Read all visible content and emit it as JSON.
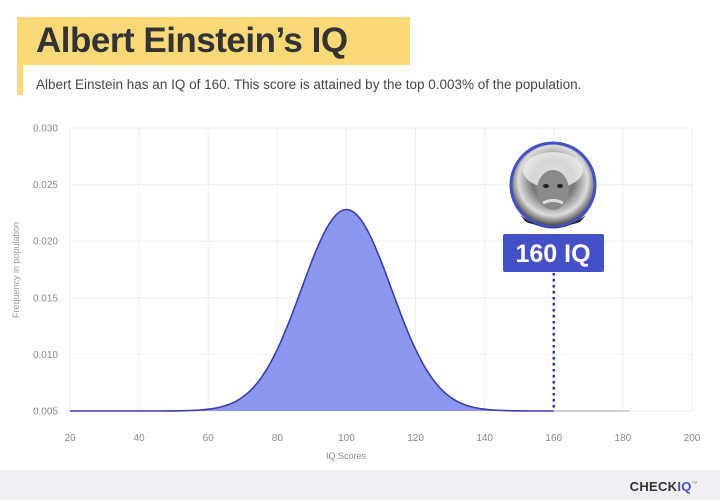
{
  "header": {
    "title": "Albert Einstein’s IQ",
    "subtitle": "Albert Einstein has an IQ of 160. This score is attained by the top 0.003% of the population."
  },
  "colors": {
    "accent": "#4450c8",
    "fill": "#8c97f0",
    "highlight": "#fcd977"
  },
  "chart_data": {
    "type": "area",
    "title": "",
    "xlabel": "IQ Scores",
    "ylabel": "Frequency in population",
    "xlim": [
      20,
      200
    ],
    "ylim": [
      0.005,
      0.03
    ],
    "xticks": [
      "20",
      "40",
      "60",
      "80",
      "100",
      "120",
      "140",
      "160",
      "180",
      "200"
    ],
    "yticks": [
      "0.005",
      "0.010",
      "0.015",
      "0.020",
      "0.025",
      "0.030"
    ],
    "grid": true,
    "distribution": {
      "mean": 100,
      "peak": 0.0228,
      "baseline": 0.005,
      "sd": 13
    },
    "x": [
      20,
      60,
      70,
      80,
      85,
      90,
      95,
      100,
      105,
      110,
      115,
      120,
      130,
      140,
      160
    ],
    "y": [
      0.005,
      0.0051,
      0.0061,
      0.0094,
      0.0124,
      0.0169,
      0.0213,
      0.0228,
      0.0213,
      0.0169,
      0.0124,
      0.0094,
      0.0061,
      0.0051,
      0.005
    ],
    "marker": {
      "x": 160,
      "label": "160 IQ",
      "image": "einstein-portrait"
    }
  },
  "footer": {
    "brand_check": "CHECK",
    "brand_iq": "IQ",
    "brand_tm": "™"
  }
}
